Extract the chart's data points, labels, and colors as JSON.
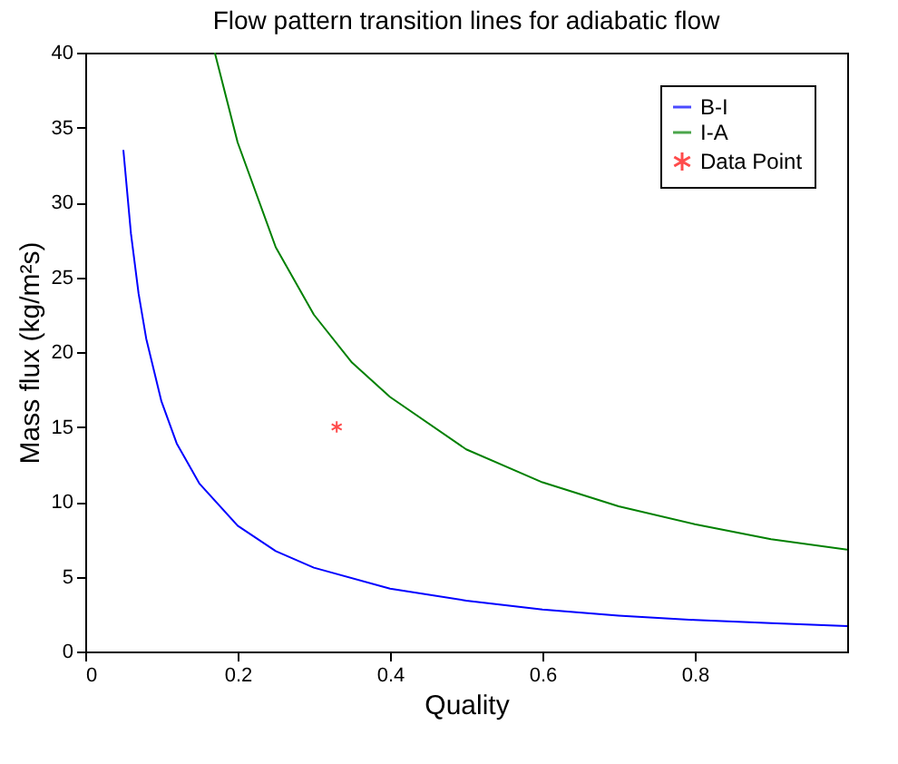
{
  "chart_data": {
    "type": "line",
    "title": "Flow pattern transition lines for adiabatic flow",
    "xlabel": "Quality",
    "ylabel": "Mass flux (kg/m²s)",
    "xlim": [
      0,
      1
    ],
    "ylim": [
      0,
      40
    ],
    "xticks": [
      0,
      0.2,
      0.4,
      0.6,
      0.8
    ],
    "yticks": [
      0,
      5,
      10,
      15,
      20,
      25,
      30,
      35,
      40
    ],
    "grid": false,
    "legend": "top right",
    "series": [
      {
        "name": "B-I",
        "color": "#0000ff",
        "x": [
          0.05,
          0.06,
          0.07,
          0.08,
          0.1,
          0.12,
          0.15,
          0.2,
          0.25,
          0.3,
          0.4,
          0.5,
          0.6,
          0.7,
          0.8,
          0.9,
          1.0
        ],
        "values": [
          33.5,
          27.9,
          23.9,
          20.9,
          16.7,
          13.9,
          11.2,
          8.4,
          6.7,
          5.6,
          4.2,
          3.4,
          2.8,
          2.4,
          2.1,
          1.9,
          1.7
        ]
      },
      {
        "name": "I-A",
        "color": "#008000",
        "x": [
          0.17,
          0.2,
          0.25,
          0.3,
          0.35,
          0.4,
          0.5,
          0.6,
          0.7,
          0.8,
          0.9,
          1.0
        ],
        "values": [
          40,
          34,
          27,
          22.5,
          19.3,
          17,
          13.5,
          11.3,
          9.7,
          8.5,
          7.5,
          6.8
        ]
      },
      {
        "name": "Data Point",
        "color": "#ff0000",
        "type": "scatter",
        "marker": "cross",
        "x": [
          0.33
        ],
        "values": [
          15
        ]
      }
    ]
  }
}
